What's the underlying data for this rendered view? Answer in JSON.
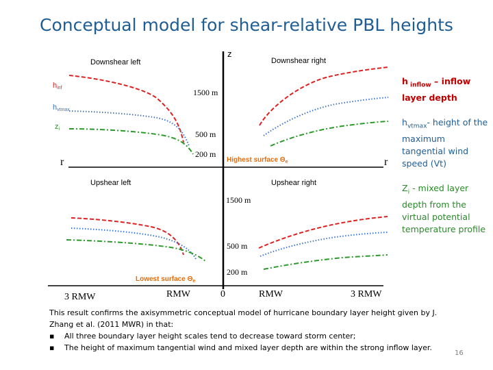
{
  "slide": {
    "title": "Conceptual model for shear-relative PBL heights",
    "page_number": "16"
  },
  "diagram": {
    "axis_z": "z",
    "axis_r": "r",
    "quadrants": {
      "downshear_left": "Downshear left",
      "downshear_right": "Downshear right",
      "upshear_left": "Upshear left",
      "upshear_right": "Upshear right"
    },
    "legend": {
      "h_inf": "h",
      "h_inf_sub": "inf",
      "h_vtmax": "h",
      "h_vtmax_sub": "vtmax",
      "z_i": "z",
      "z_i_sub": "i"
    },
    "height_labels_top": [
      "1500 m",
      "500 m",
      "200 m"
    ],
    "height_labels_bottom": [
      "1500 m",
      "500 m",
      "200 m"
    ],
    "highest_surface_label": "Highest surface Θ",
    "highest_surface_sub": "e",
    "lowest_surface_label": "Lowest surface Θ",
    "lowest_surface_sub": "e",
    "x_ticks": [
      "3 RMW",
      "RMW",
      "0",
      "RMW",
      "3 RMW"
    ],
    "colors": {
      "inflow": "#e02020",
      "vtmax": "#3a74d0",
      "mixed_layer": "#2a9a2a",
      "surface_label": "#e46c0a"
    }
  },
  "annotations": {
    "inflow_main": "h",
    "inflow_sub": " inflow",
    "inflow_rest": " – inflow layer depth",
    "vtmax_main": "h",
    "vtmax_sub": "vtmax",
    "vtmax_rest": "- height of the maximum tangential wind speed (Vt)",
    "zi_main": "Z",
    "zi_sub": "i",
    "zi_rest": " - mixed layer depth from the virtual potential temperature profile"
  },
  "caption": {
    "text": "This result confirms the axisymmetric conceptual model of hurricane boundary layer height given by J. Zhang et al. (2011 MWR) in that:",
    "bullet_symbol": "▪",
    "bullets": [
      "All three boundary layer height scales tend to decrease toward storm center;",
      "The height of maximum tangential wind and mixed layer depth are within the strong inflow layer."
    ]
  }
}
